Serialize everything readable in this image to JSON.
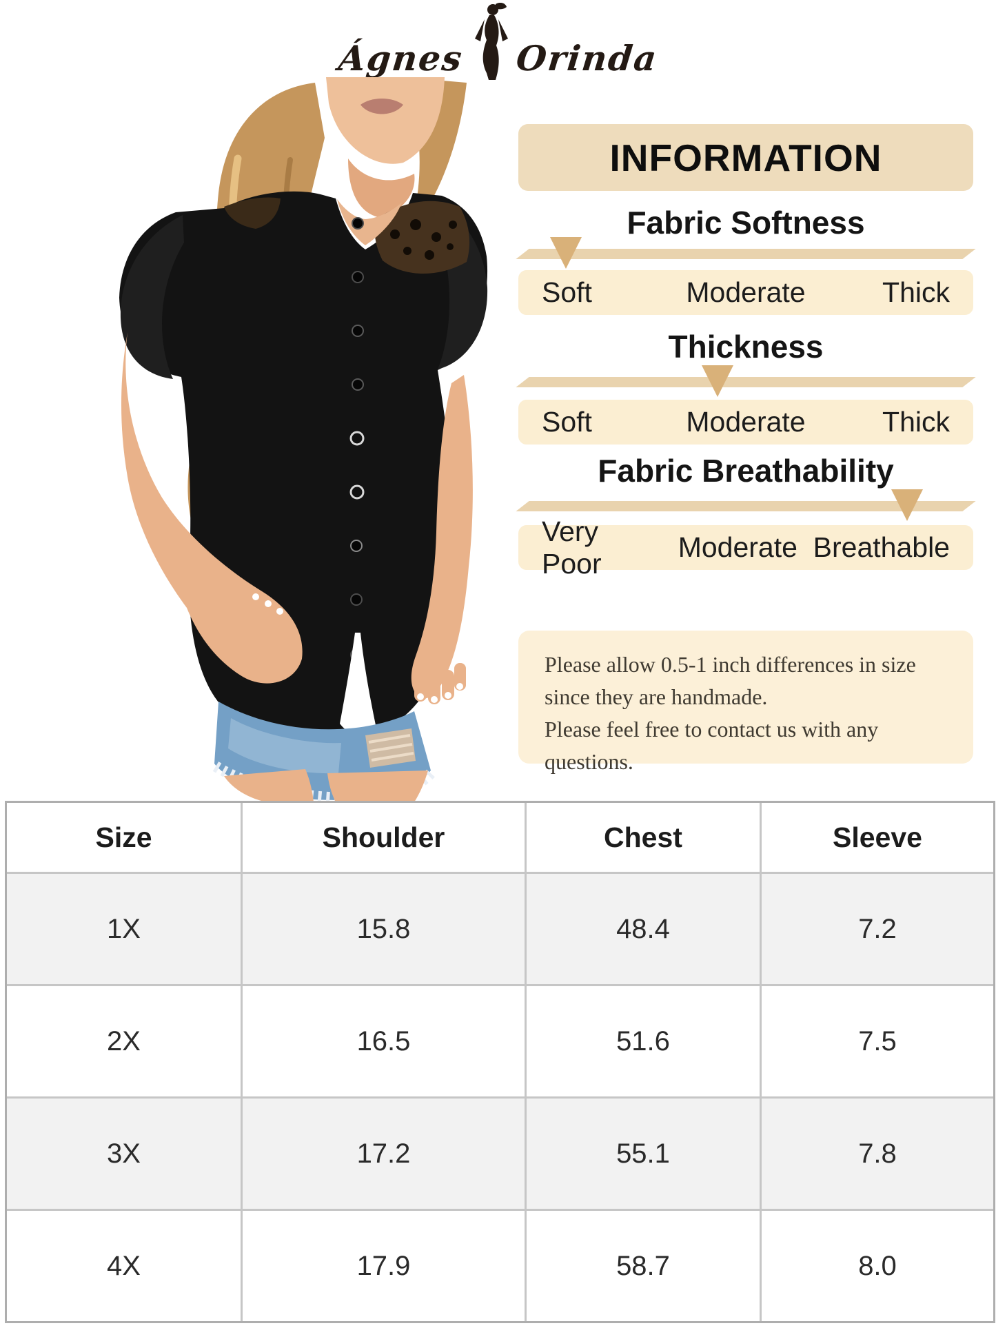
{
  "brand": {
    "name_left": "Ágnes",
    "name_right": "Orinda"
  },
  "photo": {
    "description": "Model wearing a black button-front blouse with ruffle sleeves and lace shoulder panels, and distressed light-blue denim shorts"
  },
  "info_panel": {
    "title": "INFORMATION",
    "sections": [
      {
        "heading": "Fabric Softness",
        "left_label": "Soft",
        "mid_label": "Moderate",
        "right_label": "Thick",
        "indicator_percent": 10.5
      },
      {
        "heading": "Thickness",
        "left_label": "Soft",
        "mid_label": "Moderate",
        "right_label": "Thick",
        "indicator_percent": 43.8
      },
      {
        "heading": "Fabric Breathability",
        "left_label": "Very Poor",
        "mid_label": "Moderate",
        "right_label": "Breathable",
        "indicator_percent": 85.5
      }
    ],
    "note": {
      "line1": "Please allow 0.5-1 inch differences in size",
      "line2": "since they are handmade.",
      "line3": "Please feel free to contact us with any questions."
    }
  },
  "size_table": {
    "headers": {
      "size": "Size",
      "shoulder": "Shoulder",
      "chest": "Chest",
      "sleeve": "Sleeve"
    },
    "rows": [
      {
        "size": "1X",
        "shoulder": "15.8",
        "chest": "48.4",
        "sleeve": "7.2"
      },
      {
        "size": "2X",
        "shoulder": "16.5",
        "chest": "51.6",
        "sleeve": "7.5"
      },
      {
        "size": "3X",
        "shoulder": "17.2",
        "chest": "55.1",
        "sleeve": "7.8"
      },
      {
        "size": "4X",
        "shoulder": "17.9",
        "chest": "58.7",
        "sleeve": "8.0"
      }
    ]
  },
  "colors": {
    "panel_header_bg": "#eedcbc",
    "label_row_bg": "#fbeed2",
    "slider_bar": "#e9d3ae",
    "indicator_triangle": "#d9b179",
    "note_bg": "#fcf0d8",
    "table_alt_row": "#f2f2f2",
    "table_border": "#c6c6c6",
    "logo_ink": "#241a14"
  }
}
